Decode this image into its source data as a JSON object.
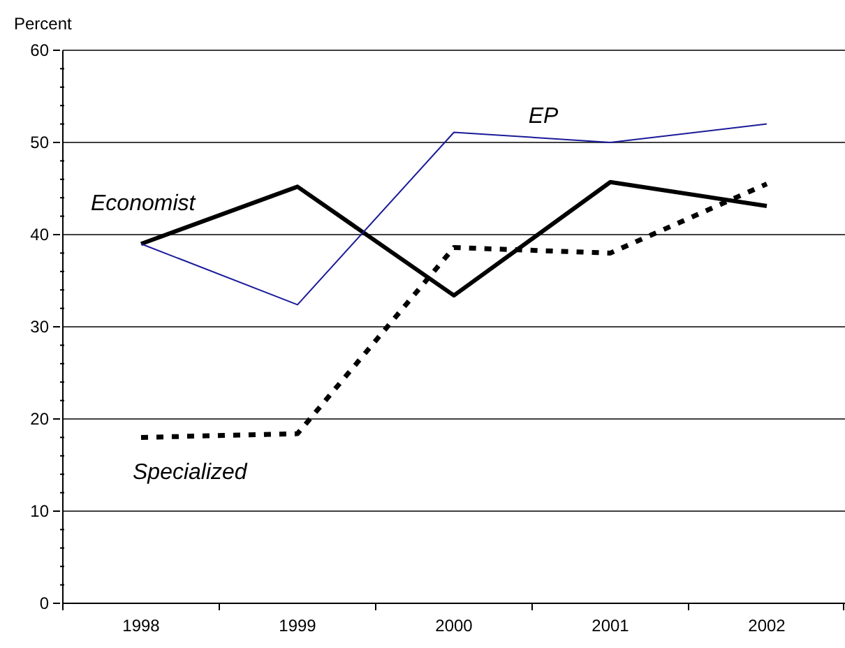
{
  "chart_data": {
    "type": "line",
    "ylabel": "Percent",
    "categories": [
      "1998",
      "1999",
      "2000",
      "2001",
      "2002"
    ],
    "series": [
      {
        "name": "Economist",
        "color": "#000000",
        "line_style": "solid",
        "values": [
          39.0,
          45.2,
          33.4,
          45.7,
          43.1
        ]
      },
      {
        "name": "EP",
        "color": "#1a1a99",
        "line_style": "solid",
        "values": [
          39.0,
          32.4,
          51.1,
          50.0,
          52.0
        ]
      },
      {
        "name": "Specialized",
        "color": "#000000",
        "line_style": "dashed",
        "values": [
          18.0,
          18.4,
          38.6,
          38.0,
          45.5
        ]
      }
    ],
    "ylim": [
      0,
      60
    ],
    "yticks": [
      0,
      {
        "value": 2,
        "label": null
      },
      {
        "value": 4,
        "label": null
      },
      {
        "value": 6,
        "label": null
      },
      {
        "value": 8,
        "label": null
      },
      10,
      {
        "value": 12,
        "label": null
      },
      {
        "value": 14,
        "label": null
      },
      {
        "value": 16,
        "label": null
      },
      {
        "value": 18,
        "label": null
      },
      20,
      {
        "value": 22,
        "label": null
      },
      {
        "value": 24,
        "label": null
      },
      {
        "value": 26,
        "label": null
      },
      {
        "value": 28,
        "label": null
      },
      30,
      {
        "value": 32,
        "label": null
      },
      {
        "value": 34,
        "label": null
      },
      {
        "value": 36,
        "label": null
      },
      {
        "value": 38,
        "label": null
      },
      40,
      {
        "value": 42,
        "label": null
      },
      {
        "value": 44,
        "label": null
      },
      {
        "value": 46,
        "label": null
      },
      {
        "value": 48,
        "label": null
      },
      50,
      {
        "value": 52,
        "label": null
      },
      {
        "value": 54,
        "label": null
      },
      {
        "value": 56,
        "label": null
      },
      {
        "value": 58,
        "label": null
      },
      60
    ],
    "grid": "y",
    "marker": "none"
  }
}
